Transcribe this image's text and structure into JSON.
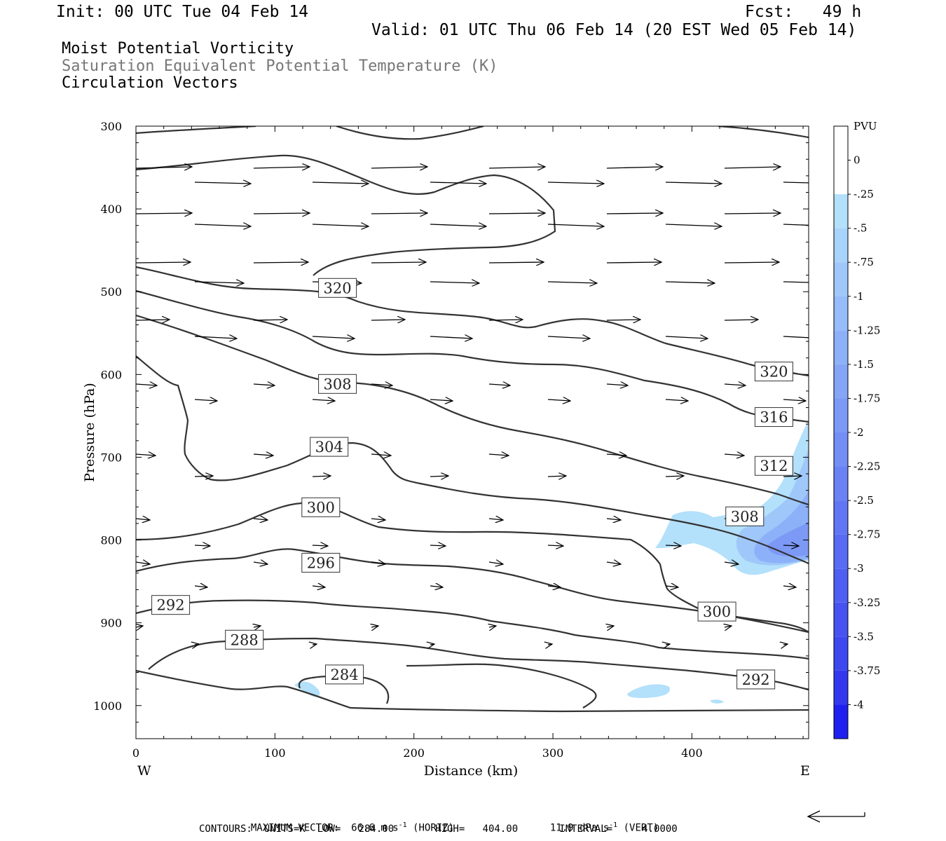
{
  "header": {
    "init": "Init: 00 UTC Tue 04 Feb 14",
    "fcst": "Fcst:   49 h",
    "valid": "Valid: 01 UTC Thu 06 Feb 14 (20 EST Wed 05 Feb 14)"
  },
  "titles": {
    "line1": "Moist Potential Vorticity",
    "line2": "Saturation Equivalent Potential Temperature (K)",
    "line3": "Circulation Vectors"
  },
  "chart_data": {
    "type": "line",
    "xlabel": "Distance (km)",
    "ylabel": "Pressure (hPa)",
    "xlim": [
      0,
      484
    ],
    "ylim": [
      1040,
      300
    ],
    "x_ticks": [
      0,
      100,
      200,
      300,
      400
    ],
    "y_ticks": [
      300,
      400,
      500,
      600,
      700,
      800,
      900,
      1000
    ],
    "x_end_labels": {
      "left": "W",
      "right": "E"
    },
    "colorbar": {
      "unit": "PVU",
      "levels": [
        "0",
        "-.25",
        "-.5",
        "-.75",
        "-1",
        "-1.25",
        "-1.5",
        "-1.75",
        "-2",
        "-2.25",
        "-2.5",
        "-2.75",
        "-3",
        "-3.25",
        "-3.5",
        "-3.75",
        "-4"
      ],
      "colors": [
        "#ffffff",
        "#ffffff",
        "#b3e0fb",
        "#a8d3fb",
        "#9fc7fa",
        "#96bcf9",
        "#8db1f8",
        "#85a5f7",
        "#7c99f6",
        "#738ef5",
        "#6a82f4",
        "#6176f3",
        "#586bf2",
        "#4f5ff1",
        "#4653f0",
        "#3d48ef",
        "#3338ee",
        "#1f1ff0"
      ]
    },
    "contour_labels": [
      {
        "value": "320",
        "x": 145,
        "p": 495
      },
      {
        "value": "308",
        "x": 145,
        "p": 611
      },
      {
        "value": "304",
        "x": 139,
        "p": 687
      },
      {
        "value": "300",
        "x": 133,
        "p": 760
      },
      {
        "value": "296",
        "x": 133,
        "p": 827
      },
      {
        "value": "292",
        "x": 25,
        "p": 878
      },
      {
        "value": "288",
        "x": 78,
        "p": 920
      },
      {
        "value": "284",
        "x": 150,
        "p": 962
      },
      {
        "value": "320",
        "x": 459,
        "p": 596
      },
      {
        "value": "316",
        "x": 459,
        "p": 651
      },
      {
        "value": "312",
        "x": 459,
        "p": 710
      },
      {
        "value": "308",
        "x": 438,
        "p": 771
      },
      {
        "value": "300",
        "x": 418,
        "p": 886
      },
      {
        "value": "292",
        "x": 446,
        "p": 968
      }
    ],
    "max_vector": {
      "text": "MAXIMUM VECTOR:  66.6 m s",
      "exp": "-1",
      "horiz": " (HORIZ)",
      "vert_text": "11.9 dPa s",
      "vert": " (VERT)"
    },
    "contours_info": "CONTOURS:  UNITS=K  LOW=   284.00       HIGH=   404.00       INTERVAL=     4.0000"
  }
}
